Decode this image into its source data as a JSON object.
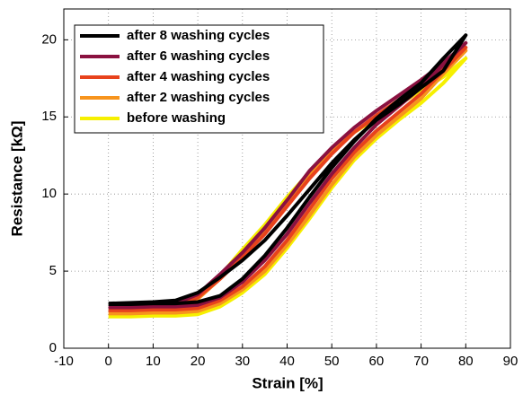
{
  "chart_data": {
    "type": "line",
    "xlabel": "Strain [%]",
    "ylabel": "Resistance [kΩ]",
    "x": [
      0,
      5,
      10,
      15,
      20,
      25,
      30,
      35,
      40,
      45,
      50,
      55,
      60,
      65,
      70,
      75,
      80,
      75,
      70,
      65,
      60,
      55,
      50,
      45,
      40,
      35,
      30,
      25,
      20,
      15,
      10,
      5,
      0
    ],
    "series": [
      {
        "name": "after 8 washing cycles",
        "color": "#000000",
        "values": [
          2.9,
          2.95,
          3.0,
          3.1,
          3.6,
          4.6,
          5.7,
          7.0,
          8.6,
          10.3,
          12.0,
          13.5,
          14.8,
          15.8,
          16.9,
          18.0,
          20.3,
          18.8,
          17.2,
          16.1,
          14.9,
          13.4,
          11.7,
          9.8,
          7.8,
          6.0,
          4.5,
          3.4,
          3.0,
          2.9,
          2.9,
          2.85,
          2.85
        ]
      },
      {
        "name": "after 6 washing cycles",
        "color": "#8a1140",
        "values": [
          2.7,
          2.75,
          2.8,
          2.9,
          3.5,
          4.8,
          6.2,
          7.8,
          9.6,
          11.5,
          13.0,
          14.3,
          15.4,
          16.4,
          17.4,
          18.5,
          19.8,
          18.4,
          16.9,
          15.7,
          14.5,
          13.0,
          11.3,
          9.4,
          7.4,
          5.7,
          4.3,
          3.3,
          2.8,
          2.7,
          2.7,
          2.65,
          2.65
        ]
      },
      {
        "name": "after 4 washing cycles",
        "color": "#e8421c",
        "values": [
          2.5,
          2.5,
          2.55,
          2.7,
          3.3,
          4.5,
          5.9,
          7.4,
          9.2,
          11.0,
          12.6,
          14.0,
          15.1,
          16.1,
          17.1,
          18.2,
          19.5,
          18.0,
          16.5,
          15.3,
          14.1,
          12.7,
          11.0,
          9.0,
          7.0,
          5.3,
          4.0,
          3.1,
          2.6,
          2.5,
          2.5,
          2.45,
          2.45
        ]
      },
      {
        "name": "after 2 washing cycles",
        "color": "#f7941d",
        "values": [
          2.3,
          2.3,
          2.35,
          2.5,
          3.2,
          4.5,
          6.0,
          7.6,
          9.4,
          11.2,
          12.7,
          14.0,
          15.0,
          16.0,
          17.0,
          18.0,
          19.3,
          17.8,
          16.2,
          15.0,
          13.8,
          12.4,
          10.6,
          8.6,
          6.7,
          5.0,
          3.8,
          2.9,
          2.4,
          2.3,
          2.3,
          2.25,
          2.25
        ]
      },
      {
        "name": "before washing",
        "color": "#f6f000",
        "values": [
          2.1,
          2.1,
          2.15,
          2.4,
          3.2,
          4.7,
          6.4,
          8.0,
          9.8,
          11.4,
          12.8,
          14.0,
          14.9,
          15.8,
          16.7,
          17.6,
          18.8,
          17.2,
          15.9,
          14.8,
          13.6,
          12.2,
          10.4,
          8.4,
          6.5,
          4.8,
          3.6,
          2.7,
          2.2,
          2.1,
          2.1,
          2.05,
          2.05
        ]
      }
    ],
    "xlim": [
      -10,
      90
    ],
    "xticks": [
      -10,
      0,
      10,
      20,
      30,
      40,
      50,
      60,
      70,
      80,
      90
    ],
    "ylim": [
      0,
      22
    ],
    "yticks": [
      0,
      5,
      10,
      15,
      20
    ],
    "grid": true,
    "legend": "upper left"
  }
}
